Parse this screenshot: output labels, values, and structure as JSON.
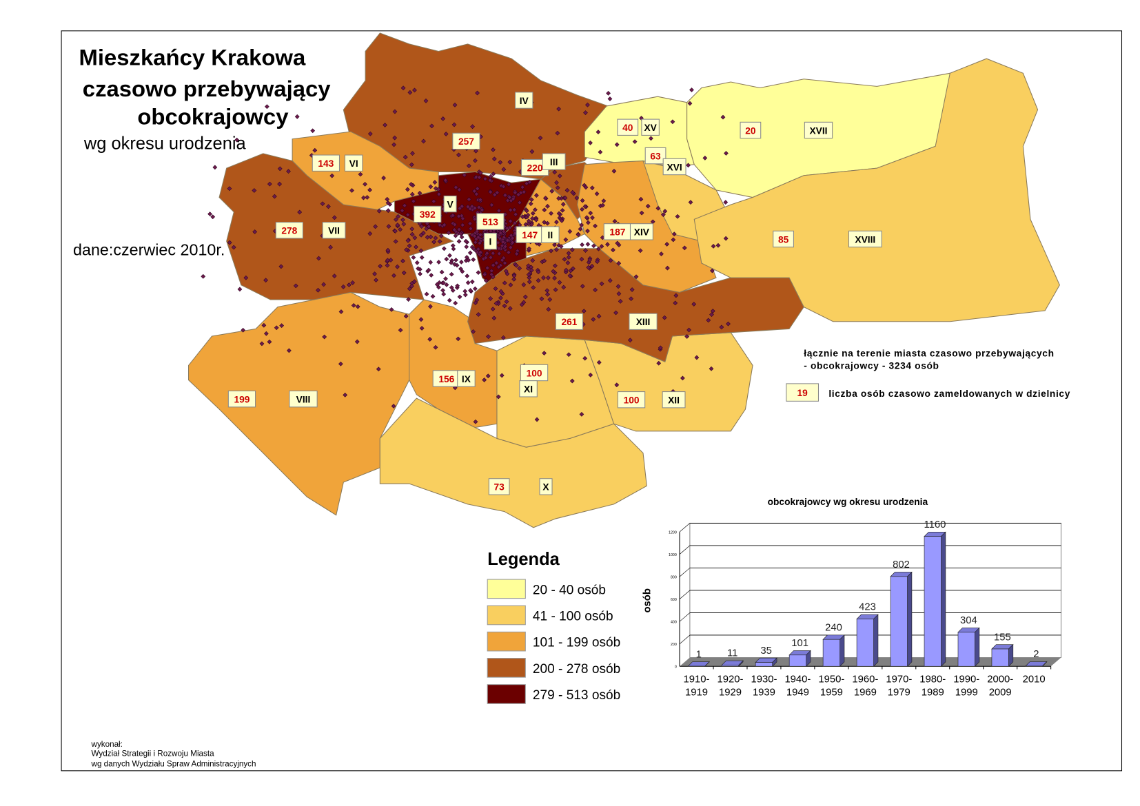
{
  "title": {
    "line1": "Mieszkańcy Krakowa",
    "line2": "czasowo przebywający",
    "line3": "obcokrajowcy",
    "subtitle": "wg okresu urodzenia"
  },
  "date_note": "dane:czerwiec 2010r.",
  "total_note": {
    "line1": "łącznie na terenie miasta czasowo przebywających",
    "line2": "- obcokrajowcy - 3234 osób"
  },
  "sample_box": {
    "value": "19",
    "label": "liczba osób czasowo zameldowanych w dzielnicy"
  },
  "legend": {
    "title": "Legenda",
    "items": [
      {
        "label": "20 - 40 osób",
        "color": "#ffff99"
      },
      {
        "label": "41 - 100 osób",
        "color": "#f9cf5f"
      },
      {
        "label": "101 - 199 osób",
        "color": "#f0a43a"
      },
      {
        "label": "200 - 278 osób",
        "color": "#b0561a"
      },
      {
        "label": "279 - 513 osób",
        "color": "#6b0000"
      }
    ]
  },
  "districts": [
    {
      "numeral": "I",
      "value": "513",
      "cls": 4
    },
    {
      "numeral": "II",
      "value": "147",
      "cls": 2
    },
    {
      "numeral": "III",
      "value": "220",
      "cls": 3
    },
    {
      "numeral": "IV",
      "value": "257",
      "cls": 3
    },
    {
      "numeral": "V",
      "value": "392",
      "cls": 4
    },
    {
      "numeral": "VI",
      "value": "143",
      "cls": 2
    },
    {
      "numeral": "VII",
      "value": "278",
      "cls": 3
    },
    {
      "numeral": "VIII",
      "value": "199",
      "cls": 2
    },
    {
      "numeral": "IX",
      "value": "156",
      "cls": 2
    },
    {
      "numeral": "X",
      "value": "73",
      "cls": 1
    },
    {
      "numeral": "XI",
      "value": "100",
      "cls": 1
    },
    {
      "numeral": "XII",
      "value": "100",
      "cls": 1
    },
    {
      "numeral": "XIII",
      "value": "261",
      "cls": 3
    },
    {
      "numeral": "XIV",
      "value": "187",
      "cls": 2
    },
    {
      "numeral": "XV",
      "value": "40",
      "cls": 0
    },
    {
      "numeral": "XVI",
      "value": "63",
      "cls": 1
    },
    {
      "numeral": "XVII",
      "value": "20",
      "cls": 0
    },
    {
      "numeral": "XVIII",
      "value": "85",
      "cls": 1
    }
  ],
  "chart_data": {
    "type": "bar",
    "title": "obcokrajowcy wg okresu urodzenia",
    "ylabel": "osób",
    "xlabel": "",
    "categories": [
      "1910-1919",
      "1920-1929",
      "1930-1939",
      "1940-1949",
      "1950-1959",
      "1960-1969",
      "1970-1979",
      "1980-1989",
      "1990-1999",
      "2000-2009",
      "2010"
    ],
    "values": [
      1,
      11,
      35,
      101,
      240,
      423,
      802,
      1160,
      304,
      155,
      2
    ],
    "ylim": [
      0,
      1200
    ],
    "yticks": [
      0,
      200,
      400,
      600,
      800,
      1000,
      1200
    ],
    "grid": true,
    "bar_color": "#9999ff"
  },
  "credits": {
    "line1": "wykonał:",
    "line2": "Wydział Strategii i Rozwoju Miasta",
    "line3": "wg danych Wydziału Spraw Administracyjnych"
  }
}
